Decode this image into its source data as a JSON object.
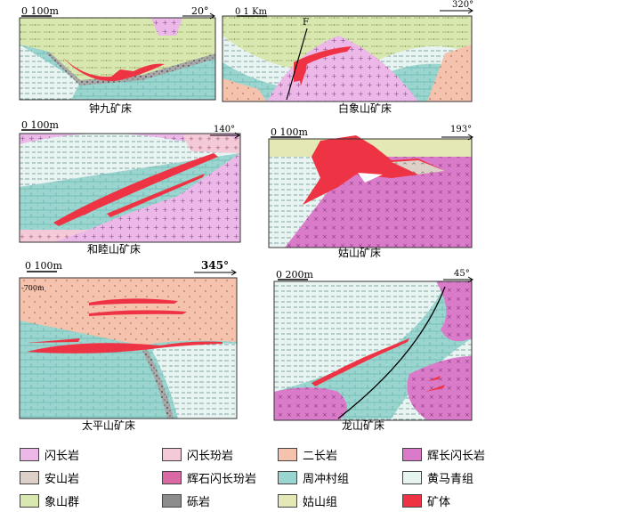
{
  "sections": [
    {
      "name": "钟九矿床",
      "scale": "0  100m",
      "azimuth": "20°"
    },
    {
      "name": "白象山矿床",
      "scale": "0      1 Km",
      "azimuth": "320°",
      "fault_label": "F"
    },
    {
      "name": "和睦山矿床",
      "scale": "0  100m",
      "azimuth": "140°"
    },
    {
      "name": "姑山矿床",
      "scale": "0  100m",
      "azimuth": "193°"
    },
    {
      "name": "太平山矿床",
      "scale": "0  100m",
      "azimuth": "345°",
      "depth_label": "-700m"
    },
    {
      "name": "龙山矿床",
      "scale": "0  200m",
      "azimuth": "45°"
    }
  ],
  "legend": [
    {
      "label": "闪长岩",
      "color": "#ebb8e8"
    },
    {
      "label": "闪长玢岩",
      "color": "#f4c9d8"
    },
    {
      "label": "二长岩",
      "color": "#f5c2ad"
    },
    {
      "label": "辉长闪长岩",
      "color": "#d97bc8"
    },
    {
      "label": "安山岩",
      "color": "#dcd0c8"
    },
    {
      "label": "辉石闪长玢岩",
      "color": "#d96aa5"
    },
    {
      "label": "周冲村组",
      "color": "#9ad6cf"
    },
    {
      "label": "黄马青组",
      "color": "#e8f4f2"
    },
    {
      "label": "象山群",
      "color": "#d9e8b0"
    },
    {
      "label": "砾岩",
      "color": "#8c8c8c"
    },
    {
      "label": "姑山组",
      "color": "#e4e8b4"
    },
    {
      "label": "矿体",
      "color": "#ee3344"
    }
  ]
}
